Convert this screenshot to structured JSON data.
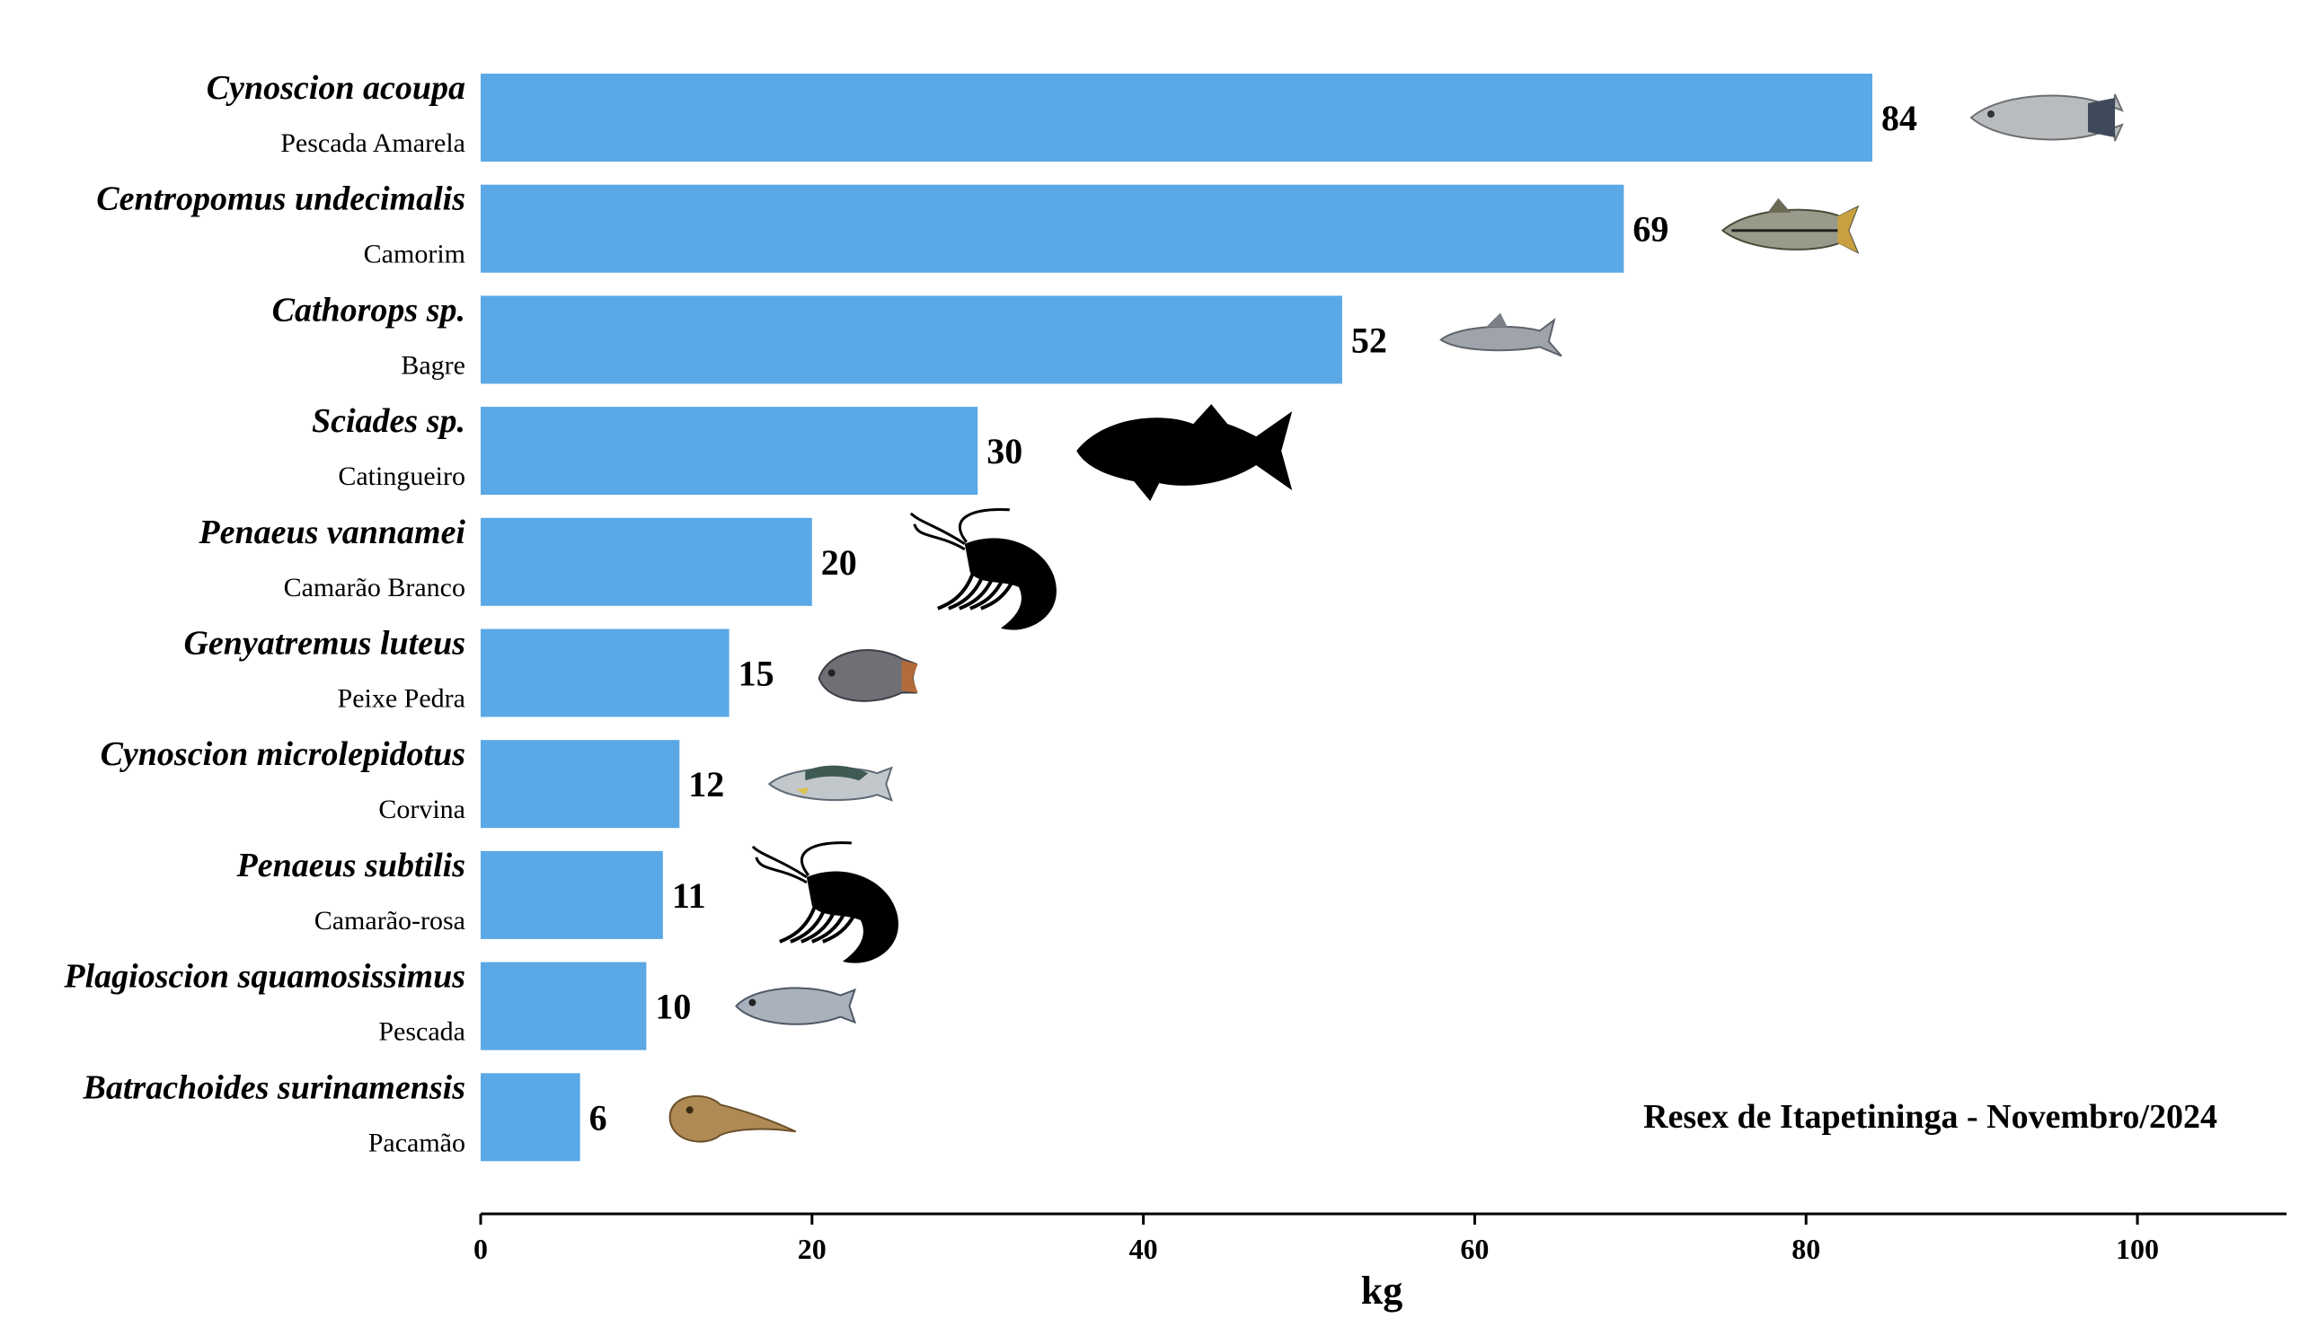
{
  "chart_data": {
    "type": "bar",
    "orientation": "horizontal",
    "categories": [
      {
        "scientific": "Cynoscion acoupa",
        "common": "Pescada Amarela",
        "icon": "yellow-croaker-fish-icon"
      },
      {
        "scientific": "Centropomus undecimalis",
        "common": "Camorim",
        "icon": "snook-fish-icon"
      },
      {
        "scientific": "Cathorops sp.",
        "common": "Bagre",
        "icon": "catfish-icon"
      },
      {
        "scientific": "Sciades sp.",
        "common": "Catingueiro",
        "icon": "fish-silhouette-icon"
      },
      {
        "scientific": "Penaeus vannamei",
        "common": "Camarão Branco",
        "icon": "shrimp-silhouette-icon"
      },
      {
        "scientific": "Genyatremus luteus",
        "common": "Peixe Pedra",
        "icon": "stone-fish-icon"
      },
      {
        "scientific": "Cynoscion microlepidotus",
        "common": "Corvina",
        "icon": "corvina-fish-icon"
      },
      {
        "scientific": "Penaeus subtilis",
        "common": "Camarão-rosa",
        "icon": "shrimp-silhouette-icon"
      },
      {
        "scientific": "Plagioscion squamosissimus",
        "common": "Pescada",
        "icon": "pescada-fish-icon"
      },
      {
        "scientific": "Batrachoides surinamensis",
        "common": "Pacamão",
        "icon": "toadfish-icon"
      }
    ],
    "values": [
      84,
      69,
      52,
      30,
      20,
      15,
      12,
      11,
      10,
      6
    ],
    "value_labels": [
      "84",
      "69",
      "52",
      "30",
      "20",
      "15",
      "12",
      "11",
      "10",
      "6"
    ],
    "xlabel": "kg",
    "ylabel": "",
    "xlim": [
      0,
      109
    ],
    "xticks": [
      "0",
      "20",
      "40",
      "60",
      "80",
      "100"
    ],
    "xtick_values": [
      0,
      20,
      40,
      60,
      80,
      100
    ],
    "annotation": "Resex de Itapetininga - Novembro/2024",
    "bar_color": "#5aa8e6",
    "grid": false,
    "legend": "none"
  }
}
